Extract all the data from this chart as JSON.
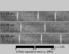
{
  "panels": [
    {
      "label": "t = 20 μm"
    },
    {
      "label": "t = 40 μm"
    },
    {
      "label": "t = 60 μm"
    }
  ],
  "fig_bg": "#c8c8c8",
  "panel_separator_color": "#c8c8c8",
  "label_fontsize": 2.8,
  "label_color": "#111111",
  "scalebar_label": "In-Plane equivalent stress σ₁₁ [MPa]",
  "scale_note": "ε = 1.0%",
  "scalebar_ticks": [
    "0",
    "100",
    "200"
  ],
  "noise_seed": 7,
  "crack_seed": 99
}
